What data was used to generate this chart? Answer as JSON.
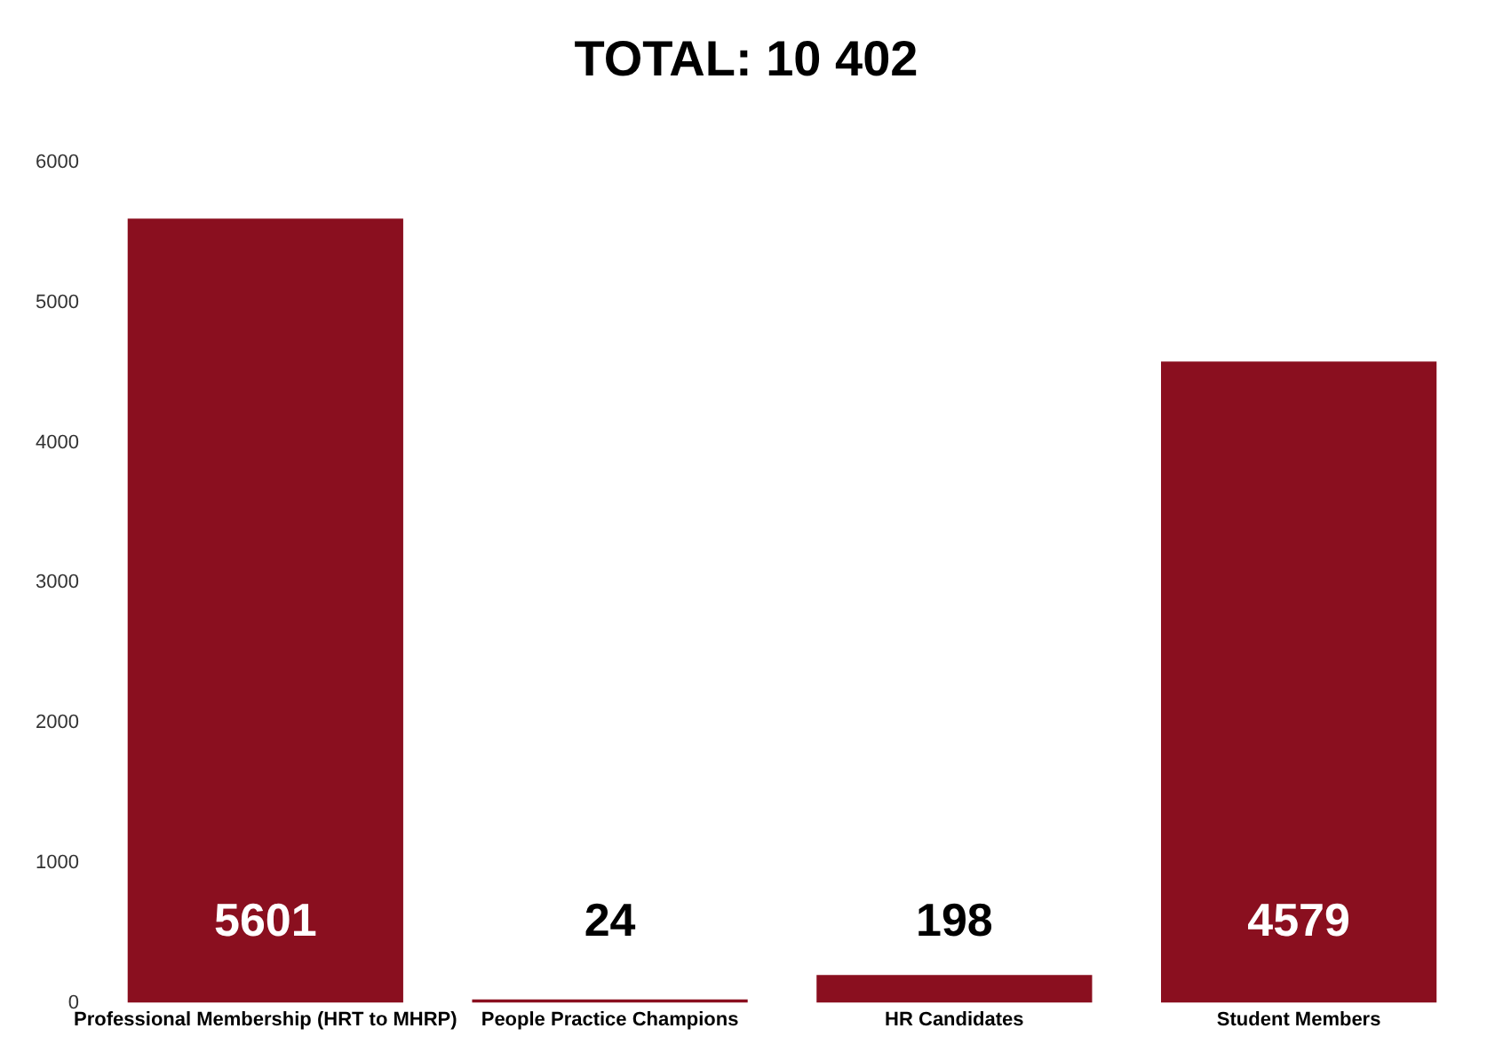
{
  "chart_data": {
    "type": "bar",
    "title": "TOTAL: 10 402",
    "categories": [
      "Professional Membership (HRT to MHRP)",
      "People Practice Champions",
      "HR Candidates",
      "Student Members"
    ],
    "values": [
      5601,
      24,
      198,
      4579
    ],
    "color": "#8a0f1f",
    "ylim": [
      0,
      6000
    ],
    "yticks": [
      0,
      1000,
      2000,
      3000,
      4000,
      5000,
      6000
    ],
    "grid": false,
    "legend": false,
    "data_labels": true
  }
}
